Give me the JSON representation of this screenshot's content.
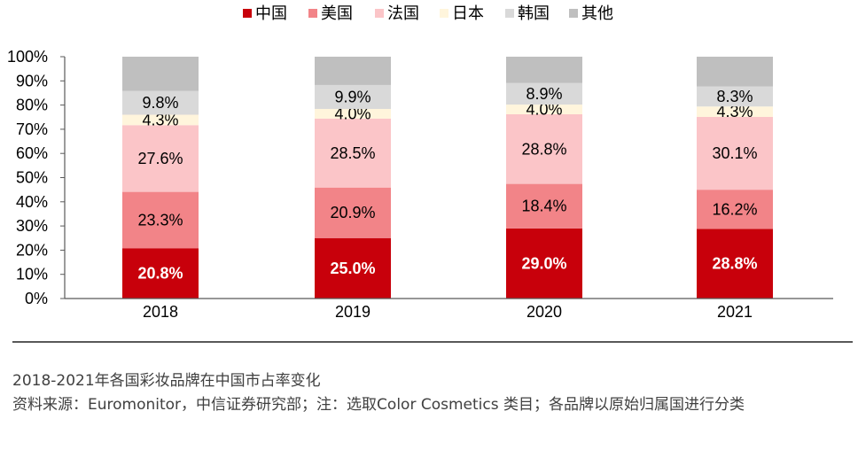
{
  "chart_data": {
    "type": "bar",
    "stacked": true,
    "categories": [
      "2018",
      "2019",
      "2020",
      "2021"
    ],
    "series": [
      {
        "name": "中国",
        "color": "#c8000b",
        "values": [
          20.8,
          25.0,
          29.0,
          28.8
        ],
        "labels": [
          "20.8%",
          "25.0%",
          "29.0%",
          "28.8%"
        ]
      },
      {
        "name": "美国",
        "color": "#f28488",
        "values": [
          23.3,
          20.9,
          18.4,
          16.2
        ],
        "labels": [
          "23.3%",
          "20.9%",
          "18.4%",
          "16.2%"
        ]
      },
      {
        "name": "法国",
        "color": "#fbc5c8",
        "values": [
          27.6,
          28.5,
          28.8,
          30.1
        ],
        "labels": [
          "27.6%",
          "28.5%",
          "28.8%",
          "30.1%"
        ]
      },
      {
        "name": "日本",
        "color": "#fff5dc",
        "values": [
          4.3,
          4.0,
          4.0,
          4.3
        ],
        "labels": [
          "4.3%",
          "4.0%",
          "4.0%",
          "4.3%"
        ]
      },
      {
        "name": "韩国",
        "color": "#d9d9d9",
        "values": [
          9.8,
          9.9,
          8.9,
          8.3
        ],
        "labels": [
          "9.8%",
          "9.9%",
          "8.9%",
          "8.3%"
        ]
      },
      {
        "name": "其他",
        "color": "#bfbfbf",
        "values": [
          14.2,
          11.7,
          10.9,
          12.3
        ],
        "labels": [
          "",
          "",
          "",
          ""
        ]
      }
    ],
    "yticks": [
      "0%",
      "10%",
      "20%",
      "30%",
      "40%",
      "50%",
      "60%",
      "70%",
      "80%",
      "90%",
      "100%"
    ],
    "ylim": [
      0,
      100
    ],
    "legend": "top",
    "grid": false
  },
  "caption": {
    "title": "2018-2021年各国彩妆品牌在中国市占率变化",
    "source": "资料来源：Euromonitor，中信证券研究部；注：选取Color Cosmetics 类目；各品牌以原始归属国进行分类"
  }
}
